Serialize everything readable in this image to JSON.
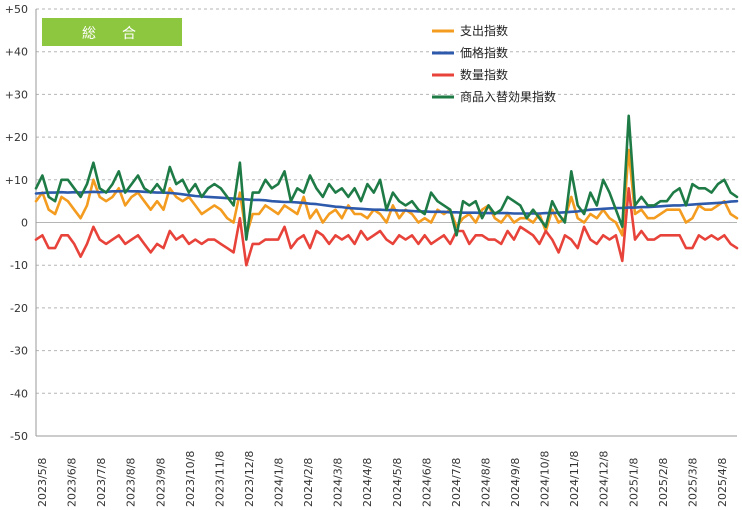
{
  "chart_data": {
    "type": "line",
    "badge": "総　合",
    "ylim": [
      -50,
      50
    ],
    "y_ticks": [
      "+50",
      "+40",
      "+30",
      "+20",
      "+10",
      "0",
      "-10",
      "-20",
      "-30",
      "-40",
      "-50"
    ],
    "x_tick_labels": [
      "2023/5/8",
      "2023/6/8",
      "2023/7/8",
      "2023/8/8",
      "2023/9/8",
      "2023/10/8",
      "2023/11/8",
      "2023/12/8",
      "2024/1/8",
      "2024/2/8",
      "2024/3/8",
      "2024/4/8",
      "2024/5/8",
      "2024/6/8",
      "2024/7/8",
      "2024/8/8",
      "2024/9/8",
      "2024/10/8",
      "2024/11/8",
      "2024/12/8",
      "2025/1/8",
      "2025/2/8",
      "2025/3/8",
      "2025/4/8"
    ],
    "grid": "horizontal-dashed",
    "legend_position": "top-right",
    "series": [
      {
        "name": "支出指数",
        "color": "#F39C1F",
        "values": [
          5,
          7,
          3,
          2,
          6,
          5,
          3,
          1,
          4,
          10,
          6,
          5,
          6,
          8,
          4,
          6,
          7,
          5,
          3,
          5,
          3,
          8,
          6,
          5,
          6,
          4,
          2,
          3,
          4,
          3,
          1,
          0,
          7,
          -3,
          2,
          2,
          4,
          3,
          2,
          4,
          3,
          2,
          6,
          1,
          3,
          0,
          2,
          3,
          1,
          4,
          2,
          2,
          1,
          3,
          2,
          0,
          4,
          1,
          3,
          2,
          0,
          1,
          0,
          3,
          2,
          3,
          -1,
          1,
          2,
          0,
          3,
          4,
          1,
          0,
          2,
          0,
          1,
          1,
          0,
          2,
          -2,
          3,
          0,
          1,
          6,
          1,
          0,
          2,
          1,
          3,
          1,
          0,
          -3,
          17,
          2,
          3,
          1,
          1,
          2,
          3,
          3,
          3,
          0,
          1,
          4,
          3,
          3,
          4,
          5,
          2,
          1
        ]
      },
      {
        "name": "価格指数",
        "color": "#2E5AAC",
        "values": [
          6.8,
          6.9,
          7,
          7,
          7.1,
          7,
          7.1,
          7,
          7.1,
          7.2,
          7.1,
          7.2,
          7.3,
          7.3,
          7.4,
          7.3,
          7.3,
          7.2,
          7.1,
          7,
          7,
          6.9,
          6.8,
          6.6,
          6.4,
          6.2,
          6.1,
          6,
          5.9,
          5.8,
          5.7,
          5.6,
          5.5,
          5.4,
          5.3,
          5.3,
          5.2,
          5,
          4.9,
          4.8,
          4.8,
          4.7,
          4.6,
          4.4,
          4.3,
          4.1,
          3.9,
          3.7,
          3.6,
          3.4,
          3.3,
          3.2,
          3.1,
          3,
          3,
          2.9,
          2.9,
          2.8,
          2.8,
          2.7,
          2.6,
          2.6,
          2.5,
          2.5,
          2.5,
          2.4,
          2.4,
          2.3,
          2.3,
          2.3,
          2.2,
          2.2,
          2.2,
          2.2,
          2.2,
          2.1,
          2.1,
          2.1,
          2.1,
          2.1,
          2.2,
          2.2,
          2.3,
          2.4,
          2.5,
          2.6,
          2.8,
          3,
          3.1,
          3.2,
          3.3,
          3.4,
          3.4,
          3.5,
          3.5,
          3.6,
          3.6,
          3.7,
          3.8,
          3.9,
          4,
          4,
          4.1,
          4.2,
          4.3,
          4.4,
          4.5,
          4.6,
          4.7,
          4.9,
          5
        ]
      },
      {
        "name": "数量指数",
        "color": "#E8433A",
        "values": [
          -4,
          -3,
          -6,
          -6,
          -3,
          -3,
          -5,
          -8,
          -5,
          -1,
          -4,
          -5,
          -4,
          -3,
          -5,
          -4,
          -3,
          -5,
          -7,
          -5,
          -6,
          -2,
          -4,
          -3,
          -5,
          -4,
          -5,
          -4,
          -4,
          -5,
          -6,
          -7,
          1,
          -10,
          -5,
          -5,
          -4,
          -4,
          -4,
          -1,
          -6,
          -4,
          -3,
          -6,
          -2,
          -3,
          -5,
          -3,
          -4,
          -3,
          -5,
          -2,
          -4,
          -3,
          -2,
          -4,
          -5,
          -3,
          -4,
          -3,
          -5,
          -3,
          -5,
          -4,
          -3,
          -5,
          -2,
          -2,
          -5,
          -3,
          -3,
          -4,
          -4,
          -5,
          -2,
          -4,
          -1,
          -2,
          -3,
          -5,
          -2,
          -4,
          -7,
          -3,
          -4,
          -6,
          -1,
          -4,
          -5,
          -3,
          -4,
          -3,
          -9,
          8,
          -4,
          -2,
          -4,
          -4,
          -3,
          -3,
          -3,
          -3,
          -6,
          -6,
          -3,
          -4,
          -3,
          -4,
          -3,
          -5,
          -6
        ]
      },
      {
        "name": "商品入替効果指数",
        "color": "#1E7B46",
        "values": [
          8,
          11,
          6,
          5,
          10,
          10,
          8,
          6,
          9,
          14,
          8,
          7,
          9,
          12,
          7,
          9,
          11,
          8,
          7,
          9,
          7,
          13,
          9,
          10,
          7,
          9,
          6,
          8,
          9,
          8,
          6,
          4,
          14,
          -4,
          7,
          7,
          10,
          8,
          9,
          12,
          5,
          8,
          7,
          11,
          8,
          6,
          9,
          7,
          8,
          6,
          8,
          5,
          9,
          7,
          10,
          3,
          7,
          5,
          4,
          5,
          3,
          2,
          7,
          5,
          4,
          3,
          -3,
          5,
          4,
          5,
          1,
          4,
          2,
          3,
          6,
          5,
          4,
          1,
          3,
          1,
          -1,
          5,
          2,
          0,
          12,
          4,
          2,
          7,
          4,
          10,
          7,
          3,
          -1,
          25,
          4,
          6,
          4,
          4,
          5,
          5,
          7,
          8,
          4,
          9,
          8,
          8,
          7,
          9,
          10,
          7,
          6
        ]
      }
    ]
  }
}
